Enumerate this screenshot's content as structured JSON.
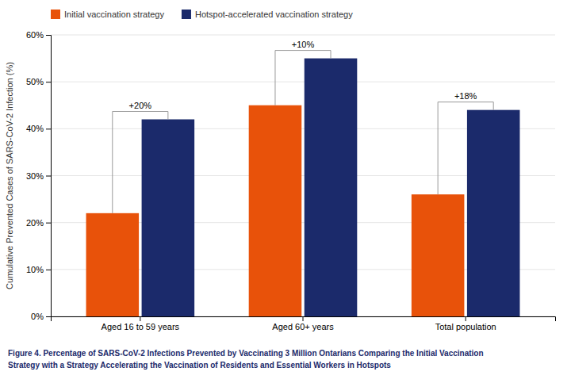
{
  "chart_data": {
    "type": "bar",
    "categories": [
      "Aged 16 to 59 years",
      "Aged 60+ years",
      "Total population"
    ],
    "series": [
      {
        "name": "Initial vaccination strategy",
        "color": "#E8520A",
        "values": [
          22,
          45,
          26
        ]
      },
      {
        "name": "Hotspot-accelerated vaccination strategy",
        "color": "#1B2A6B",
        "values": [
          42,
          55,
          44
        ]
      }
    ],
    "annotations": [
      "+20%",
      "+10%",
      "+18%"
    ],
    "ylabel": "Cumulative Prevented Cases of SARS-CoV-2 Infection (%)",
    "caption": [
      "Figure 4. Percentage of SARS-CoV-2 Infections Prevented by Vaccinating 3 Million Ontarians Comparing the Initial Vaccination",
      "Strategy with a Strategy Accelerating the Vaccination of Residents and Essential Workers in Hotspots"
    ],
    "ylim": [
      0,
      60
    ],
    "yticks": [
      {
        "value": 0,
        "label": "0%"
      },
      {
        "value": 10,
        "label": "10%"
      },
      {
        "value": 20,
        "label": "20%"
      },
      {
        "value": 30,
        "label": "30%"
      },
      {
        "value": 40,
        "label": "40%"
      },
      {
        "value": 50,
        "label": "50%"
      },
      {
        "value": 60,
        "label": "60%"
      }
    ],
    "grid": true,
    "legend": "top-left"
  }
}
